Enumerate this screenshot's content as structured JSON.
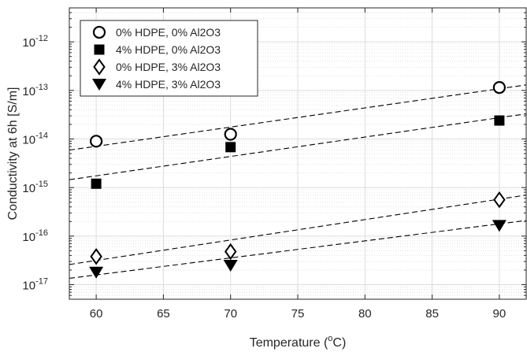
{
  "chart_data": {
    "type": "scatter",
    "xlabel": {
      "base": "Temperature (",
      "sup": "o",
      "tail": "C)"
    },
    "ylabel": "Conductivity at 6h [S/m]",
    "xlim": [
      58,
      92
    ],
    "ylim_log10": [
      -17.3,
      -11.3
    ],
    "yscale": "log",
    "grid": true,
    "legend_position": "top-left",
    "x_ticks": [
      60,
      65,
      70,
      75,
      80,
      85,
      90
    ],
    "y_ticks": [
      {
        "base": "10",
        "exp": "-17",
        "log": -17
      },
      {
        "base": "10",
        "exp": "-16",
        "log": -16
      },
      {
        "base": "10",
        "exp": "-15",
        "log": -15
      },
      {
        "base": "10",
        "exp": "-14",
        "log": -14
      },
      {
        "base": "10",
        "exp": "-13",
        "log": -13
      },
      {
        "base": "10",
        "exp": "-12",
        "log": -12
      }
    ],
    "series": [
      {
        "name": "0% HDPE, 0% Al2O3",
        "marker": "circle",
        "x": [
          60,
          70,
          90
        ],
        "y": [
          9e-15,
          1.25e-14,
          1.15e-13
        ],
        "fit": {
          "x": [
            58,
            92
          ],
          "y": [
            5.9e-15,
            1.3e-13
          ]
        }
      },
      {
        "name": "4% HDPE, 0% Al2O3",
        "marker": "square",
        "x": [
          60,
          70,
          90
        ],
        "y": [
          1.2e-15,
          6.8e-15,
          2.4e-14
        ],
        "fit": {
          "x": [
            58,
            92
          ],
          "y": [
            1.45e-15,
            3.3e-14
          ]
        }
      },
      {
        "name": "0% HDPE, 3% Al2O3",
        "marker": "diamond",
        "x": [
          60,
          70,
          90
        ],
        "y": [
          3.8e-17,
          4.8e-17,
          5.6e-16
        ],
        "fit": {
          "x": [
            58,
            92
          ],
          "y": [
            2.6e-17,
            7e-16
          ]
        }
      },
      {
        "name": "4% HDPE, 3% Al2O3",
        "marker": "triangle-down",
        "x": [
          60,
          70,
          90
        ],
        "y": [
          1.8e-17,
          2.5e-17,
          1.65e-16
        ],
        "fit": {
          "x": [
            58,
            92
          ],
          "y": [
            1.35e-17,
            2.1e-16
          ]
        }
      }
    ]
  },
  "colors": {
    "axis": "#262626",
    "grid": "#dcdcdc",
    "marker": "#000000",
    "fit_line": "#000000"
  }
}
